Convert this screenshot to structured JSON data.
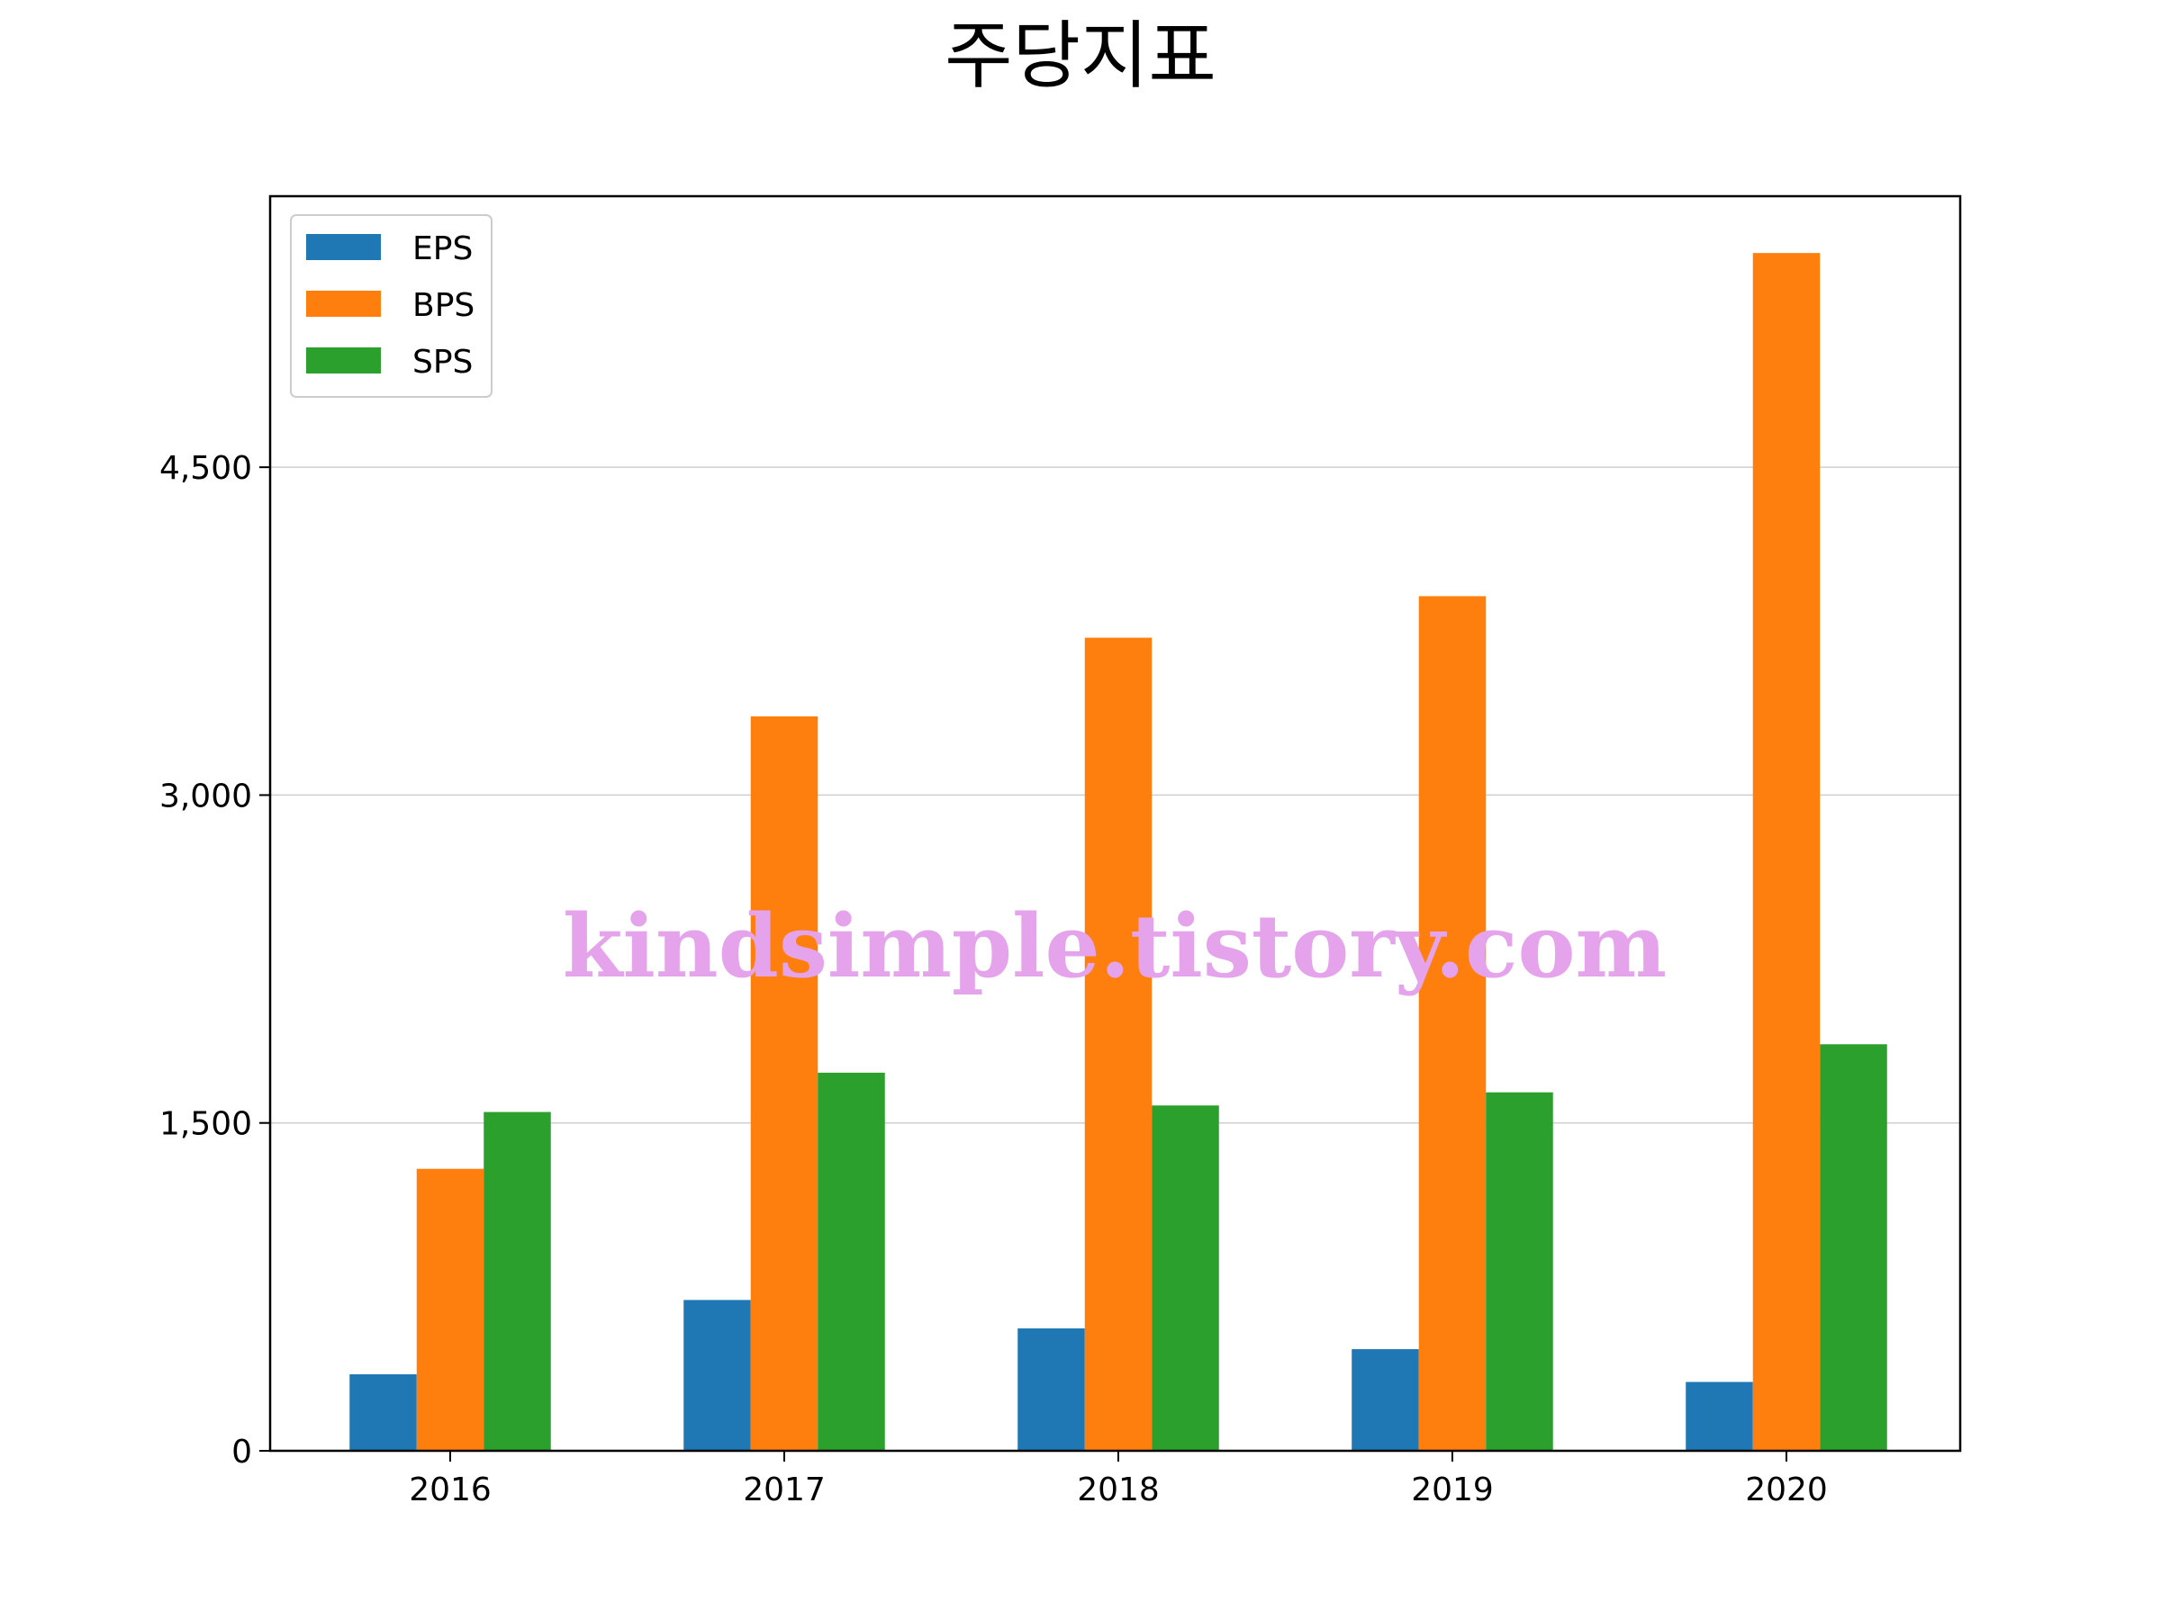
{
  "chart_data": {
    "type": "bar",
    "title": "주당지표",
    "xlabel": "",
    "ylabel": "",
    "categories": [
      "2016",
      "2017",
      "2018",
      "2019",
      "2020"
    ],
    "series": [
      {
        "name": "EPS",
        "color": "#1f77b4",
        "values": [
          350,
          690,
          560,
          465,
          315
        ]
      },
      {
        "name": "BPS",
        "color": "#ff7f0e",
        "values": [
          1290,
          3360,
          3720,
          3910,
          5480
        ]
      },
      {
        "name": "SPS",
        "color": "#2ca02c",
        "values": [
          1550,
          1730,
          1580,
          1640,
          1860
        ]
      }
    ],
    "yticks": [
      0,
      1500,
      3000,
      4500
    ],
    "ytick_labels": [
      "0",
      "1,500",
      "3,000",
      "4,500"
    ],
    "ylim": [
      0,
      5740
    ],
    "grid": "y",
    "legend_position": "upper-left",
    "watermark": "kindsimple.tistory.com"
  }
}
